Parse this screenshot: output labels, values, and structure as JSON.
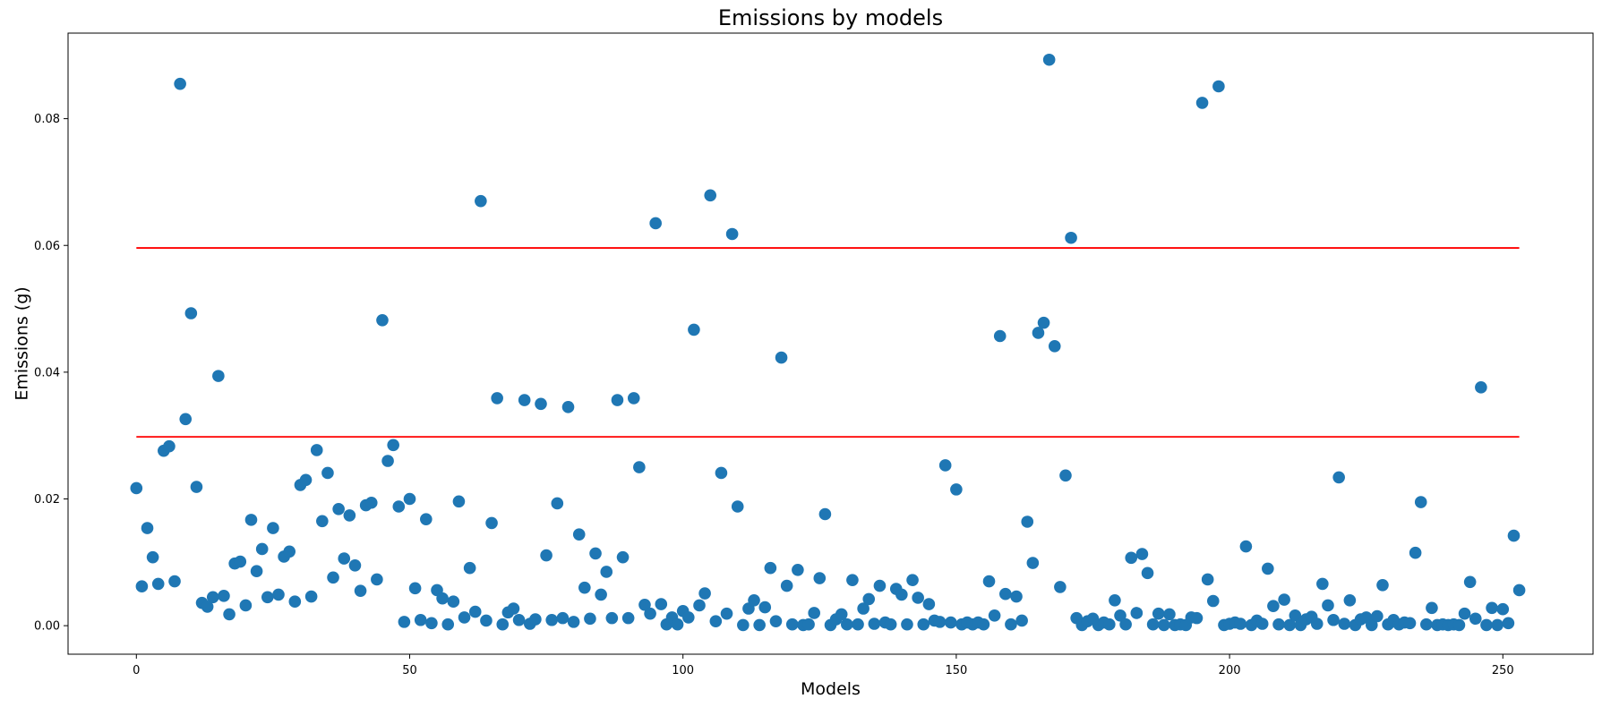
{
  "chart_data": {
    "type": "scatter",
    "title": "Emissions by models",
    "xlabel": "Models",
    "ylabel": "Emissions (g)",
    "xlim": [
      -12.5,
      266.5
    ],
    "ylim": [
      -0.0045,
      0.0935
    ],
    "xticks": [
      0,
      50,
      100,
      150,
      200,
      250
    ],
    "yticks": [
      0.0,
      0.02,
      0.04,
      0.06,
      0.08
    ],
    "ytick_labels": [
      "0.00",
      "0.02",
      "0.04",
      "0.06",
      "0.08"
    ],
    "grid": false,
    "marker_color": "#1f77b4",
    "line_color": "#ff0000",
    "hlines": [
      {
        "y": 0.0596,
        "xmin": 0,
        "xmax": 253
      },
      {
        "y": 0.0298,
        "xmin": 0,
        "xmax": 253
      }
    ],
    "x": [
      0,
      1,
      2,
      3,
      4,
      5,
      6,
      7,
      8,
      9,
      10,
      11,
      12,
      13,
      14,
      15,
      16,
      17,
      18,
      19,
      20,
      21,
      22,
      23,
      24,
      25,
      26,
      27,
      28,
      29,
      30,
      31,
      32,
      33,
      34,
      35,
      36,
      37,
      38,
      39,
      40,
      41,
      42,
      43,
      44,
      45,
      46,
      47,
      48,
      49,
      50,
      51,
      52,
      53,
      54,
      55,
      56,
      57,
      58,
      59,
      60,
      61,
      62,
      63,
      64,
      65,
      66,
      67,
      68,
      69,
      70,
      71,
      72,
      73,
      74,
      75,
      76,
      77,
      78,
      79,
      80,
      81,
      82,
      83,
      84,
      85,
      86,
      87,
      88,
      89,
      90,
      91,
      92,
      93,
      94,
      95,
      96,
      97,
      98,
      99,
      100,
      101,
      102,
      103,
      104,
      105,
      106,
      107,
      108,
      109,
      110,
      111,
      112,
      113,
      114,
      115,
      116,
      117,
      118,
      119,
      120,
      121,
      122,
      123,
      124,
      125,
      126,
      127,
      128,
      129,
      130,
      131,
      132,
      133,
      134,
      135,
      136,
      137,
      138,
      139,
      140,
      141,
      142,
      143,
      144,
      145,
      146,
      147,
      148,
      149,
      150,
      151,
      152,
      153,
      154,
      155,
      156,
      157,
      158,
      159,
      160,
      161,
      162,
      163,
      164,
      165,
      166,
      167,
      168,
      169,
      170,
      171,
      172,
      173,
      174,
      175,
      176,
      177,
      178,
      179,
      180,
      181,
      182,
      183,
      184,
      185,
      186,
      187,
      188,
      189,
      190,
      191,
      192,
      193,
      194,
      195,
      196,
      197,
      198,
      199,
      200,
      201,
      202,
      203,
      204,
      205,
      206,
      207,
      208,
      209,
      210,
      211,
      212,
      213,
      214,
      215,
      216,
      217,
      218,
      219,
      220,
      221,
      222,
      223,
      224,
      225,
      226,
      227,
      228,
      229,
      230,
      231,
      232,
      233,
      234,
      235,
      236,
      237,
      238,
      239,
      240,
      241,
      242,
      243,
      244,
      245,
      246,
      247,
      248,
      249,
      250,
      251,
      252,
      253
    ],
    "y": [
      0.0217,
      0.0062,
      0.0154,
      0.0108,
      0.0066,
      0.0276,
      0.0283,
      0.007,
      0.0855,
      0.0326,
      0.0493,
      0.0219,
      0.0036,
      0.003,
      0.0045,
      0.0394,
      0.0047,
      0.0018,
      0.0098,
      0.0101,
      0.0032,
      0.0167,
      0.0086,
      0.0121,
      0.0045,
      0.0154,
      0.0049,
      0.0109,
      0.0117,
      0.0038,
      0.0222,
      0.023,
      0.0046,
      0.0277,
      0.0165,
      0.0241,
      0.0076,
      0.0184,
      0.0106,
      0.0174,
      0.0095,
      0.0055,
      0.019,
      0.0194,
      0.0073,
      0.0482,
      0.026,
      0.0285,
      0.0188,
      0.0006,
      0.02,
      0.0059,
      0.0009,
      0.0168,
      0.0004,
      0.0056,
      0.0043,
      0.0002,
      0.0038,
      0.0196,
      0.0013,
      0.0091,
      0.0022,
      0.067,
      0.0008,
      0.0162,
      0.0359,
      0.0002,
      0.0021,
      0.0027,
      0.0009,
      0.0356,
      0.0003,
      0.001,
      0.035,
      0.0111,
      0.0009,
      0.0193,
      0.0012,
      0.0345,
      0.0006,
      0.0144,
      0.006,
      0.0011,
      0.0114,
      0.0049,
      0.0085,
      0.0012,
      0.0356,
      0.0108,
      0.0012,
      0.0359,
      0.025,
      0.0033,
      0.0019,
      0.0635,
      0.0034,
      0.0002,
      0.0013,
      0.0002,
      0.0023,
      0.0013,
      0.0467,
      0.0032,
      0.0051,
      0.0679,
      0.0007,
      0.0241,
      0.0019,
      0.0618,
      0.0188,
      0.0001,
      0.0027,
      0.004,
      0.0001,
      0.0029,
      0.0091,
      0.0007,
      0.0423,
      0.0063,
      0.0002,
      0.0088,
      0.0001,
      0.0002,
      0.002,
      0.0075,
      0.0176,
      0.0001,
      0.001,
      0.0018,
      0.0002,
      0.0072,
      0.0002,
      0.0027,
      0.0042,
      0.0003,
      0.0063,
      0.0005,
      0.0002,
      0.0058,
      0.0049,
      0.0002,
      0.0072,
      0.0044,
      0.0002,
      0.0034,
      0.0008,
      0.0006,
      0.0253,
      0.0005,
      0.0215,
      0.0002,
      0.0005,
      0.0002,
      0.0005,
      0.0002,
      0.007,
      0.0016,
      0.0457,
      0.005,
      0.0002,
      0.0046,
      0.0008,
      0.0164,
      0.0099,
      0.0462,
      0.0478,
      0.0893,
      0.0441,
      0.0061,
      0.0237,
      0.0612,
      0.0012,
      0.0001,
      0.0007,
      0.0011,
      0.0001,
      0.0005,
      0.0002,
      0.004,
      0.0016,
      0.0002,
      0.0107,
      0.002,
      0.0113,
      0.0083,
      0.0002,
      0.0019,
      0.0001,
      0.0018,
      0.0001,
      0.0002,
      0.0001,
      0.0013,
      0.0012,
      0.0825,
      0.0073,
      0.0039,
      0.0851,
      0.0001,
      0.0003,
      0.0005,
      0.0003,
      0.0125,
      0.0001,
      0.0008,
      0.0003,
      0.009,
      0.0031,
      0.0002,
      0.0041,
      0.0001,
      0.0016,
      0.0001,
      0.001,
      0.0014,
      0.0003,
      0.0066,
      0.0032,
      0.0009,
      0.0234,
      0.0003,
      0.004,
      0.0001,
      0.001,
      0.0013,
      0.0001,
      0.0015,
      0.0064,
      0.0002,
      0.0009,
      0.0002,
      0.0005,
      0.0004,
      0.0115,
      0.0195,
      0.0002,
      0.0028,
      0.0001,
      0.0002,
      0.0001,
      0.0002,
      0.0001,
      0.0019,
      0.0069,
      0.0011,
      0.0376,
      0.0001,
      0.0028,
      0.0001,
      0.0026,
      0.0004,
      0.0142,
      0.0056
    ]
  }
}
